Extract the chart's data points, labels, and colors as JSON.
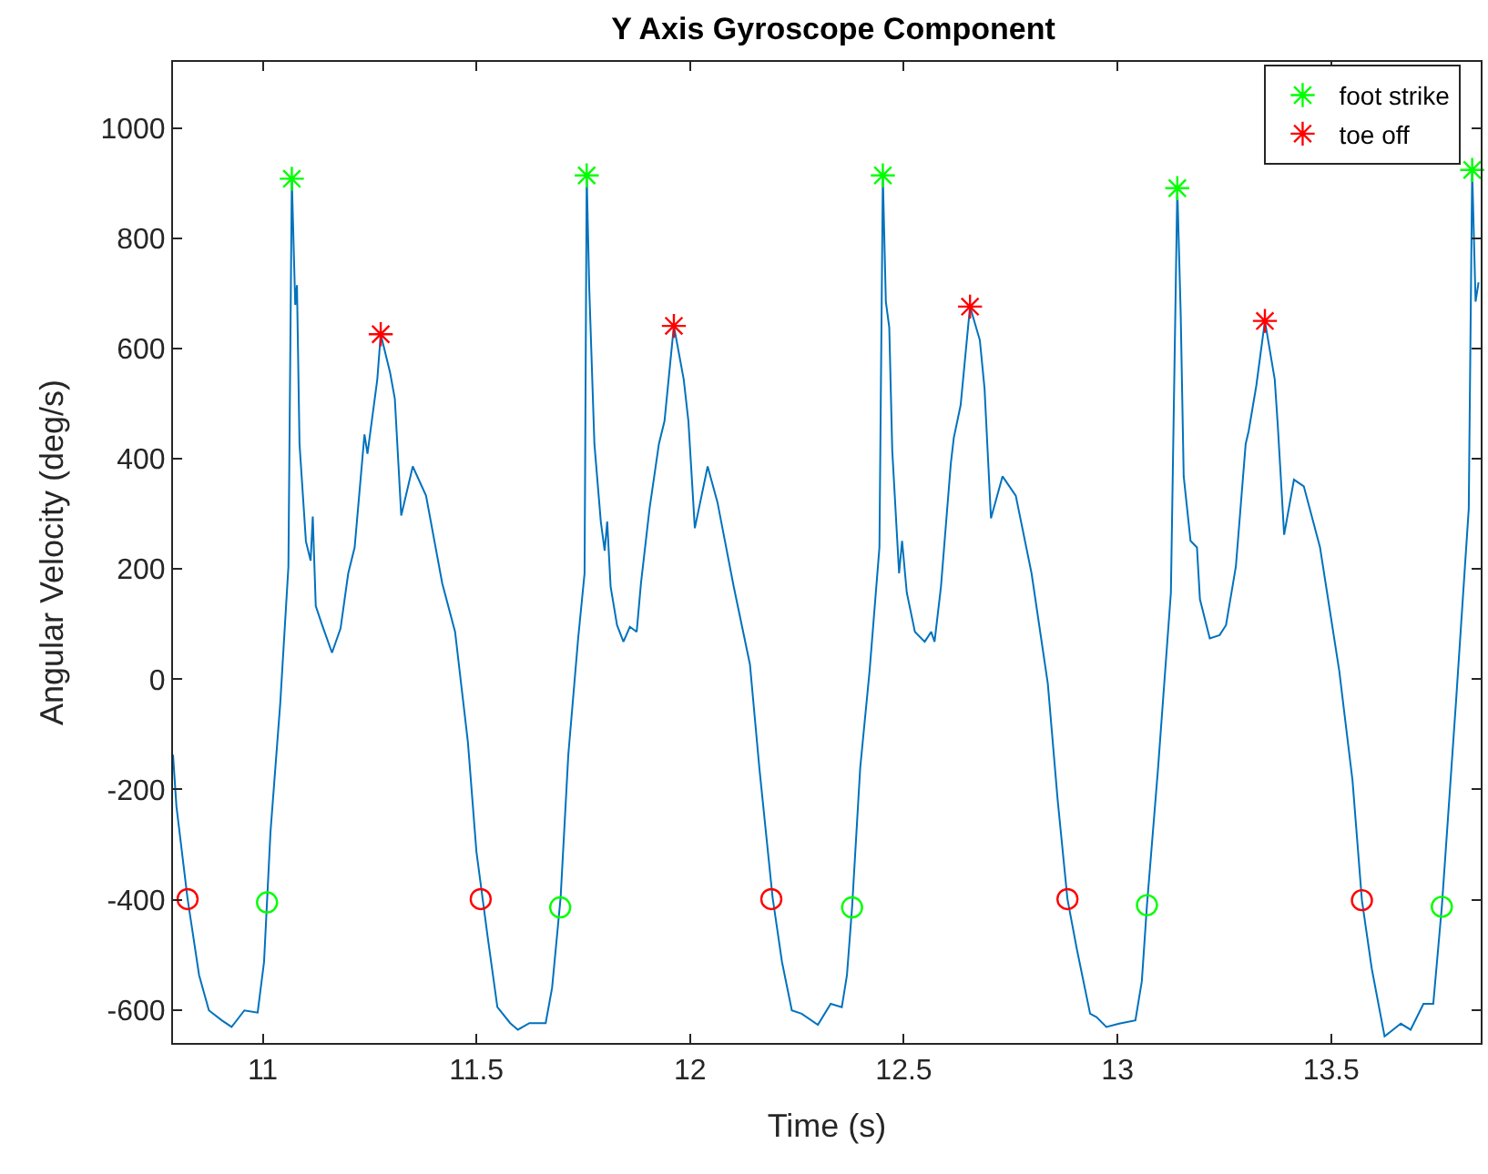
{
  "chart_data": {
    "type": "line",
    "title": "Y Axis Gyroscope Component",
    "xlabel": "Time (s)",
    "ylabel": "Angular Velocity (deg/s)",
    "xlim": [
      10.79,
      13.85
    ],
    "xticks": [
      11,
      11.5,
      12,
      12.5,
      13,
      13.5
    ],
    "ylim": [
      -660,
      1120
    ],
    "yticks": [
      -600,
      -400,
      -200,
      0,
      200,
      400,
      600,
      800,
      1000
    ],
    "grid": false,
    "legend": "top right",
    "series": [
      {
        "color": "#0072bd",
        "marker": "none",
        "x": [
          10.79,
          10.798,
          10.824,
          10.851,
          10.874,
          10.904,
          10.927,
          10.957,
          10.988,
          11.003,
          11.018,
          11.041,
          11.06,
          11.068,
          11.076,
          11.08,
          11.086,
          11.101,
          11.112,
          11.117,
          11.124,
          11.139,
          11.162,
          11.182,
          11.2,
          11.215,
          11.238,
          11.245,
          11.268,
          11.276,
          11.298,
          11.309,
          11.324,
          11.351,
          11.382,
          11.42,
          11.45,
          11.48,
          11.5,
          11.526,
          11.549,
          11.579,
          11.597,
          11.624,
          11.662,
          11.677,
          11.697,
          11.715,
          11.738,
          11.753,
          11.758,
          11.764,
          11.776,
          11.791,
          11.8,
          11.806,
          11.814,
          11.829,
          11.844,
          11.859,
          11.875,
          11.885,
          11.905,
          11.927,
          11.94,
          11.962,
          11.985,
          11.996,
          12.011,
          12.041,
          12.064,
          12.102,
          12.14,
          12.162,
          12.193,
          12.215,
          12.238,
          12.261,
          12.299,
          12.329,
          12.355,
          12.367,
          12.379,
          12.398,
          12.42,
          12.443,
          12.451,
          12.458,
          12.466,
          12.473,
          12.489,
          12.496,
          12.507,
          12.526,
          12.549,
          12.564,
          12.572,
          12.587,
          12.61,
          12.617,
          12.633,
          12.655,
          12.678,
          12.689,
          12.704,
          12.731,
          12.762,
          12.799,
          12.837,
          12.86,
          12.883,
          12.905,
          12.936,
          12.951,
          12.974,
          13.004,
          13.042,
          13.057,
          13.069,
          13.095,
          13.125,
          13.14,
          13.148,
          13.155,
          13.171,
          13.186,
          13.193,
          13.216,
          13.239,
          13.254,
          13.277,
          13.3,
          13.307,
          13.325,
          13.345,
          13.368,
          13.375,
          13.39,
          13.413,
          13.436,
          13.474,
          13.519,
          13.55,
          13.572,
          13.595,
          13.625,
          13.663,
          13.686,
          13.716,
          13.739,
          13.759,
          13.792,
          13.822,
          13.83,
          13.838,
          13.845
        ],
        "values": [
          -137,
          -231,
          -398,
          -537,
          -601,
          -619,
          -631,
          -601,
          -605,
          -513,
          -278,
          -43,
          204,
          908,
          679,
          715,
          427,
          250,
          215,
          295,
          133,
          98,
          48,
          92,
          192,
          239,
          444,
          409,
          544,
          626,
          556,
          509,
          297,
          386,
          333,
          174,
          86,
          -114,
          -313,
          -466,
          -595,
          -624,
          -636,
          -624,
          -624,
          -560,
          -396,
          -137,
          74,
          192,
          914,
          709,
          427,
          286,
          233,
          286,
          168,
          98,
          68,
          95,
          86,
          174,
          309,
          427,
          468,
          641,
          544,
          468,
          274,
          386,
          321,
          168,
          27,
          -161,
          -396,
          -513,
          -601,
          -607,
          -627,
          -589,
          -595,
          -537,
          -414,
          -161,
          15,
          239,
          914,
          685,
          638,
          415,
          192,
          251,
          157,
          86,
          68,
          86,
          68,
          168,
          391,
          438,
          497,
          676,
          615,
          527,
          292,
          368,
          333,
          192,
          -8,
          -219,
          -399,
          -490,
          -607,
          -613,
          -631,
          -625,
          -619,
          -548,
          -410,
          -161,
          157,
          891,
          662,
          368,
          251,
          239,
          145,
          74,
          80,
          98,
          204,
          427,
          450,
          533,
          650,
          544,
          462,
          262,
          362,
          350,
          239,
          15,
          -184,
          -401,
          -525,
          -648,
          -625,
          -636,
          -589,
          -589,
          -413,
          -43,
          309,
          924,
          685,
          720
        ]
      },
      {
        "type": "scatter",
        "name": "foot strike",
        "color": "#00ff00",
        "marker": "cross",
        "x": [
          11.068,
          11.758,
          12.451,
          13.14,
          13.83
        ],
        "values": [
          908,
          914,
          914,
          891,
          924
        ]
      },
      {
        "type": "scatter",
        "name": "toe off",
        "color": "#ff0000",
        "marker": "cross",
        "x": [
          11.276,
          11.962,
          12.655,
          13.345
        ],
        "values": [
          626,
          641,
          676,
          650
        ]
      },
      {
        "type": "scatter",
        "color": "#ff0000",
        "marker": "circle",
        "x": [
          10.824,
          11.51,
          12.19,
          12.883,
          13.572
        ],
        "values": [
          -399,
          -399,
          -399,
          -399,
          -401
        ]
      },
      {
        "type": "scatter",
        "color": "#00ff00",
        "marker": "circle",
        "x": [
          11.01,
          11.696,
          12.379,
          13.069,
          13.759
        ],
        "values": [
          -405,
          -414,
          -414,
          -410,
          -413
        ]
      }
    ]
  }
}
